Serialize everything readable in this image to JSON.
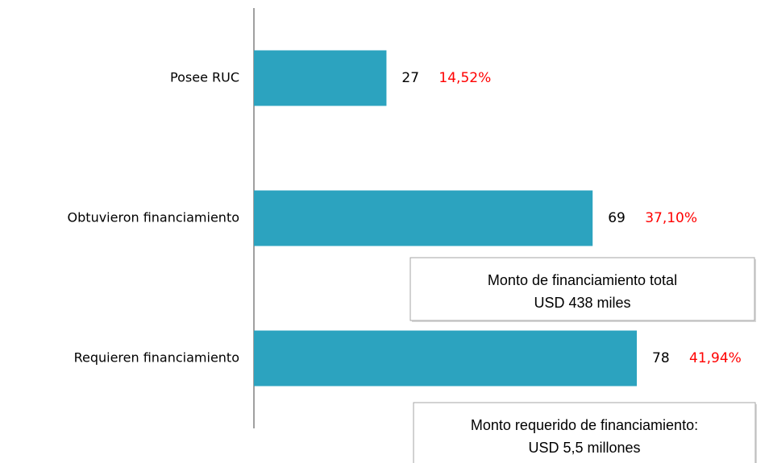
{
  "chart_data": {
    "type": "barh",
    "categories": [
      "Posee RUC",
      "Obtuvieron financiamiento",
      "Requieren financiamiento"
    ],
    "values": [
      27,
      69,
      78
    ],
    "percentages": [
      14.52,
      37.1,
      41.94
    ],
    "percentage_labels": [
      "14,52%",
      "37,10%",
      "41,94%"
    ],
    "color": "#2ca3bf",
    "label_color": "#ff0000",
    "xlim": [
      0,
      100
    ],
    "annotations": [
      {
        "lines": [
          "Monto de financiamiento total",
          "USD 438 miles"
        ]
      },
      {
        "lines": [
          "Monto requerido de  financiamiento:",
          "USD  5,5 millones"
        ]
      }
    ]
  }
}
